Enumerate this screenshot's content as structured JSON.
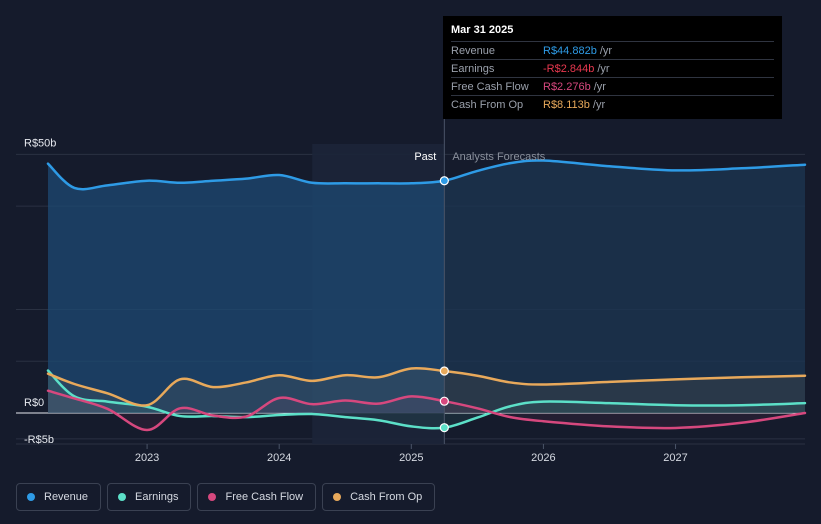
{
  "chart_data": {
    "type": "line",
    "title": "",
    "y_axis": {
      "unit": "R$b",
      "range": [
        -6,
        52
      ],
      "tick_labels": [
        {
          "label": "R$50b",
          "value": 50
        },
        {
          "label": "R$0",
          "value": 0
        },
        {
          "label": "-R$5b",
          "value": -5
        }
      ]
    },
    "x_axis": {
      "range": [
        2022.25,
        2027.98
      ],
      "tick_labels": [
        {
          "label": "2023",
          "value": 2023
        },
        {
          "label": "2024",
          "value": 2024
        },
        {
          "label": "2025",
          "value": 2025
        },
        {
          "label": "2026",
          "value": 2026
        },
        {
          "label": "2027",
          "value": 2027
        }
      ]
    },
    "past_label": "Past",
    "forecast_label": "Analysts Forecasts",
    "divider_x": 2025.25,
    "highlight_start_x": 2024.25,
    "series": [
      {
        "name": "Revenue",
        "color": "#2e9be6",
        "fill": true,
        "points": [
          [
            2022.25,
            48.2
          ],
          [
            2022.45,
            43.5
          ],
          [
            2022.7,
            44.0
          ],
          [
            2023.0,
            44.9
          ],
          [
            2023.25,
            44.5
          ],
          [
            2023.5,
            44.9
          ],
          [
            2023.75,
            45.3
          ],
          [
            2024.0,
            46.0
          ],
          [
            2024.25,
            44.5
          ],
          [
            2024.5,
            44.4
          ],
          [
            2024.75,
            44.4
          ],
          [
            2025.0,
            44.4
          ],
          [
            2025.25,
            44.9
          ],
          [
            2025.5,
            46.8
          ],
          [
            2025.75,
            48.3
          ],
          [
            2026.0,
            48.8
          ],
          [
            2026.5,
            47.7
          ],
          [
            2027.0,
            46.9
          ],
          [
            2027.5,
            47.3
          ],
          [
            2027.98,
            48.0
          ]
        ]
      },
      {
        "name": "Earnings",
        "color": "#5ce0c8",
        "fill": false,
        "points": [
          [
            2022.25,
            8.2
          ],
          [
            2022.45,
            3.2
          ],
          [
            2022.7,
            2.2
          ],
          [
            2023.0,
            1.2
          ],
          [
            2023.25,
            -0.6
          ],
          [
            2023.5,
            -0.6
          ],
          [
            2023.75,
            -0.8
          ],
          [
            2024.0,
            -0.4
          ],
          [
            2024.25,
            -0.2
          ],
          [
            2024.5,
            -0.8
          ],
          [
            2024.75,
            -1.4
          ],
          [
            2025.0,
            -2.6
          ],
          [
            2025.25,
            -2.844
          ],
          [
            2025.5,
            -0.9
          ],
          [
            2025.75,
            1.3
          ],
          [
            2026.0,
            2.2
          ],
          [
            2026.5,
            1.9
          ],
          [
            2027.0,
            1.5
          ],
          [
            2027.5,
            1.5
          ],
          [
            2027.98,
            1.9
          ]
        ]
      },
      {
        "name": "Free Cash Flow",
        "color": "#d6487e",
        "fill": false,
        "points": [
          [
            2022.25,
            4.3
          ],
          [
            2022.45,
            2.8
          ],
          [
            2022.7,
            0.8
          ],
          [
            2023.0,
            -3.3
          ],
          [
            2023.25,
            0.9
          ],
          [
            2023.5,
            -0.5
          ],
          [
            2023.75,
            -0.7
          ],
          [
            2024.0,
            2.9
          ],
          [
            2024.25,
            1.7
          ],
          [
            2024.5,
            2.4
          ],
          [
            2024.75,
            1.8
          ],
          [
            2025.0,
            3.2
          ],
          [
            2025.25,
            2.276
          ],
          [
            2025.5,
            0.9
          ],
          [
            2025.75,
            -0.8
          ],
          [
            2026.0,
            -1.6
          ],
          [
            2026.5,
            -2.6
          ],
          [
            2027.0,
            -2.9
          ],
          [
            2027.5,
            -1.9
          ],
          [
            2027.98,
            0.0
          ]
        ]
      },
      {
        "name": "Cash From Op",
        "color": "#e8a95b",
        "fill": false,
        "points": [
          [
            2022.25,
            7.6
          ],
          [
            2022.45,
            5.6
          ],
          [
            2022.7,
            3.8
          ],
          [
            2023.0,
            1.5
          ],
          [
            2023.25,
            6.5
          ],
          [
            2023.5,
            5.0
          ],
          [
            2023.75,
            5.9
          ],
          [
            2024.0,
            7.3
          ],
          [
            2024.25,
            6.2
          ],
          [
            2024.5,
            7.3
          ],
          [
            2024.75,
            6.9
          ],
          [
            2025.0,
            8.6
          ],
          [
            2025.25,
            8.113
          ],
          [
            2025.5,
            7.2
          ],
          [
            2025.75,
            5.9
          ],
          [
            2026.0,
            5.5
          ],
          [
            2026.5,
            6.0
          ],
          [
            2027.0,
            6.5
          ],
          [
            2027.5,
            6.9
          ],
          [
            2027.98,
            7.2
          ]
        ]
      }
    ]
  },
  "tooltip": {
    "date": "Mar 31 2025",
    "rows": [
      {
        "key": "Revenue",
        "value": "R$44.882b",
        "unit": "/yr",
        "color": "#2e9be6"
      },
      {
        "key": "Earnings",
        "value": "-R$2.844b",
        "unit": "/yr",
        "color": "#e8384f"
      },
      {
        "key": "Free Cash Flow",
        "value": "R$2.276b",
        "unit": "/yr",
        "color": "#d6487e"
      },
      {
        "key": "Cash From Op",
        "value": "R$8.113b",
        "unit": "/yr",
        "color": "#e8a95b"
      }
    ]
  },
  "legend": [
    {
      "label": "Revenue",
      "color": "#2e9be6"
    },
    {
      "label": "Earnings",
      "color": "#5ce0c8"
    },
    {
      "label": "Free Cash Flow",
      "color": "#d6487e"
    },
    {
      "label": "Cash From Op",
      "color": "#e8a95b"
    }
  ]
}
